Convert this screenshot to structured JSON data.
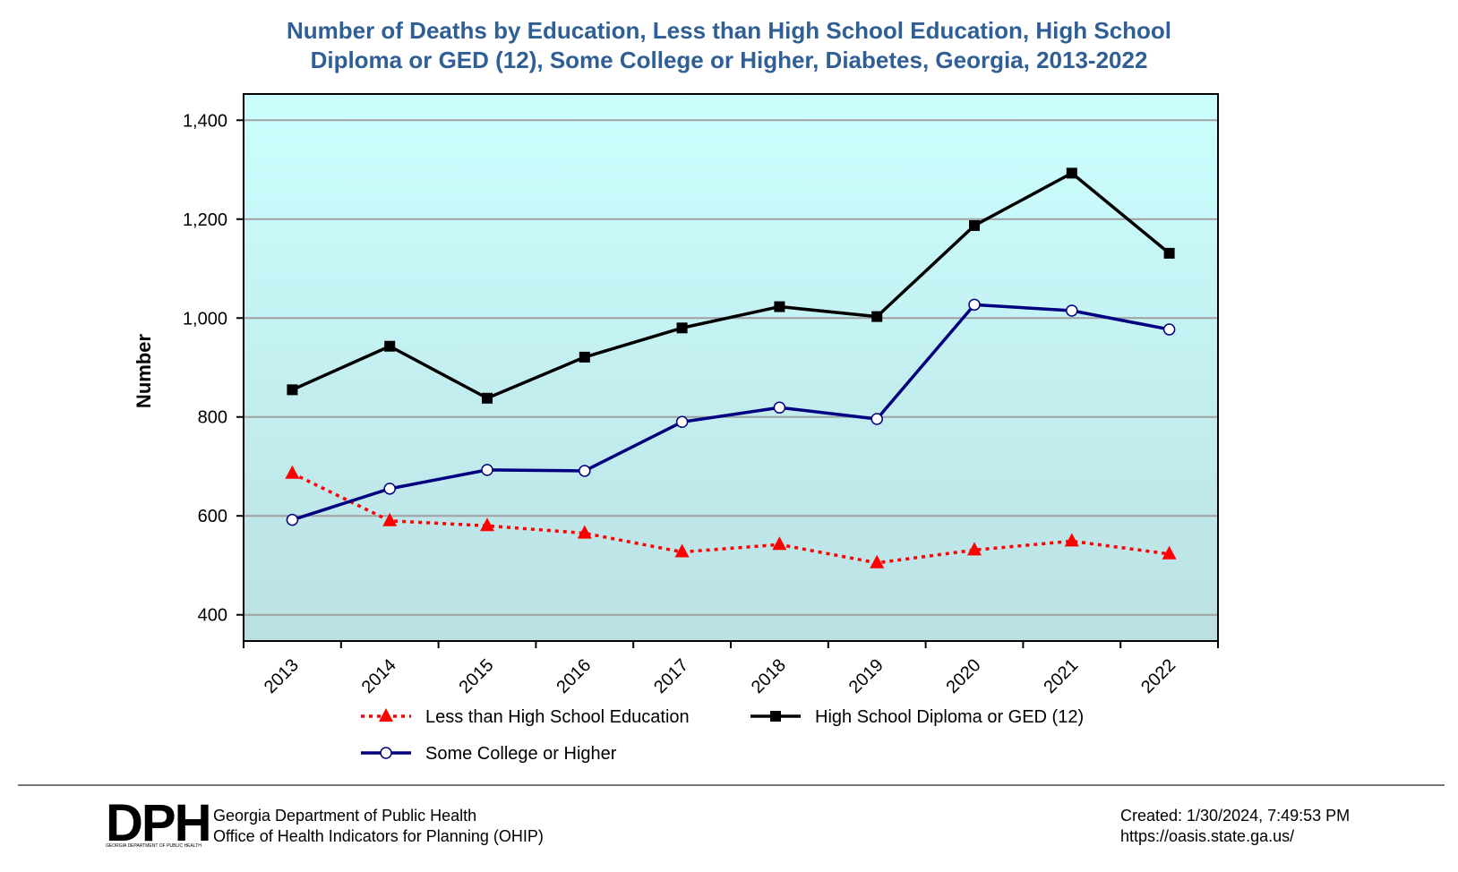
{
  "title_lines": [
    "Number of Deaths by Education, Less than High School Education, High School",
    "Diploma or GED (12), Some College or Higher, Diabetes, Georgia, 2013-2022"
  ],
  "colors": {
    "title": "#2F5F95",
    "plot_top": "#CCFFFF",
    "plot_bottom": "#BBE0E3",
    "grid": "#A0A0A0"
  },
  "chart_data": {
    "type": "line",
    "title": "Number of Deaths by Education, Less than High School Education, High School Diploma or GED (12), Some College or Higher, Diabetes, Georgia, 2013-2022",
    "xlabel": "",
    "ylabel": "Number",
    "categories": [
      "2013",
      "2014",
      "2015",
      "2016",
      "2017",
      "2018",
      "2019",
      "2020",
      "2021",
      "2022"
    ],
    "ylim": [
      347,
      1453
    ],
    "yticks": [
      400,
      600,
      800,
      1000,
      1200,
      1400
    ],
    "ytick_labels": [
      "400",
      "600",
      "800",
      "1,000",
      "1,200",
      "1,400"
    ],
    "grid": true,
    "legend_position": "bottom",
    "series": [
      {
        "name": "Less than High School Education",
        "color": "#FF0000",
        "line_style": "dotted",
        "marker": "triangle",
        "values": [
          686,
          590,
          580,
          565,
          527,
          542,
          505,
          531,
          549,
          523
        ]
      },
      {
        "name": "High School Diploma or GED (12)",
        "color": "#000000",
        "line_style": "solid",
        "marker": "square",
        "values": [
          855,
          943,
          838,
          921,
          980,
          1023,
          1003,
          1187,
          1293,
          1131
        ]
      },
      {
        "name": "Some College or Higher",
        "color": "#000080",
        "line_style": "solid",
        "marker": "circle-open",
        "values": [
          592,
          655,
          693,
          691,
          790,
          819,
          796,
          1027,
          1015,
          977
        ]
      }
    ]
  },
  "footer": {
    "logo_text": "DPH",
    "logo_subtext": "GEORGIA DEPARTMENT OF PUBLIC HEALTH",
    "org_line1": "Georgia Department of Public Health",
    "org_line2": "Office of Health Indicators for Planning (OHIP)",
    "created": "Created: 1/30/2024, 7:49:53 PM",
    "url": "https://oasis.state.ga.us/"
  }
}
